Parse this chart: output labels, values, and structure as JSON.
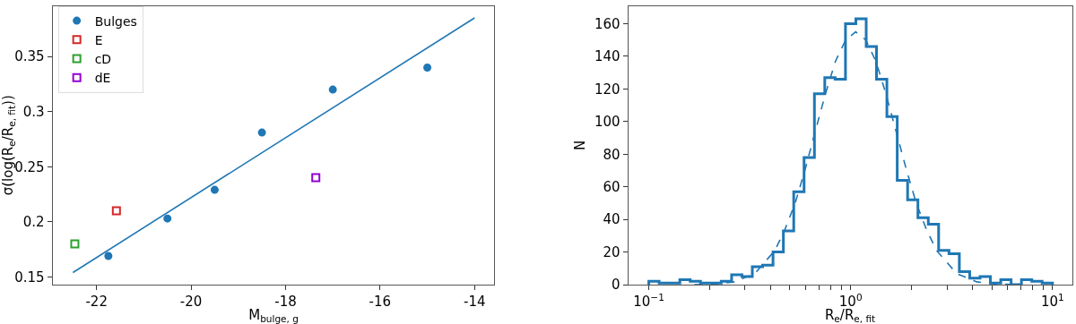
{
  "chart_data": [
    {
      "type": "scatter",
      "xlabel": "M$_{bulge, g}$",
      "ylabel": "σ(log(R$_{e}$/R$_{e, fit}$))",
      "xlim": [
        -22.93,
        -13.58
      ],
      "xticks": [
        -22,
        -20,
        -18,
        -16,
        -14
      ],
      "ylim": [
        0.143,
        0.396
      ],
      "yticks": [
        0.15,
        0.2,
        0.25,
        0.3,
        0.35
      ],
      "legend": "top left",
      "series": [
        {
          "name": "Bulges",
          "marker": "circle",
          "color": "#1f77b4",
          "x": [
            -21.75,
            -20.5,
            -19.5,
            -18.5,
            -17.0,
            -15.0
          ],
          "values": [
            0.169,
            0.203,
            0.229,
            0.281,
            0.32,
            0.34
          ]
        },
        {
          "name": "E",
          "marker": "square",
          "color": "#d62728",
          "x": [
            -21.58
          ],
          "values": [
            0.21
          ]
        },
        {
          "name": "cD",
          "marker": "square",
          "color": "#2ca02c",
          "x": [
            -22.46
          ],
          "values": [
            0.18
          ]
        },
        {
          "name": "dE",
          "marker": "square",
          "color": "#9400d3",
          "x": [
            -17.36
          ],
          "values": [
            0.24
          ]
        },
        {
          "type": "line",
          "color": "#1f77b4",
          "line_style": "solid",
          "x": [
            -22.5,
            -14.0
          ],
          "values": [
            0.154,
            0.385
          ]
        }
      ]
    },
    {
      "type": "histogram",
      "xlabel": "R$_{e}$/R$_{e, fit}$",
      "ylabel": "N",
      "log": "x",
      "xlim": [
        0.079,
        12.5
      ],
      "xticks": [
        {
          "value": 0.1,
          "label": "10$^{−1}$"
        },
        {
          "value": 0.2,
          "label": null
        },
        {
          "value": 0.3,
          "label": null
        },
        {
          "value": 0.4,
          "label": null
        },
        {
          "value": 0.5,
          "label": null
        },
        {
          "value": 0.6,
          "label": null
        },
        {
          "value": 0.7,
          "label": null
        },
        {
          "value": 0.8,
          "label": null
        },
        {
          "value": 0.9,
          "label": null
        },
        {
          "value": 1,
          "label": "10$^{0}$"
        },
        {
          "value": 2,
          "label": null
        },
        {
          "value": 3,
          "label": null
        },
        {
          "value": 4,
          "label": null
        },
        {
          "value": 5,
          "label": null
        },
        {
          "value": 6,
          "label": null
        },
        {
          "value": 7,
          "label": null
        },
        {
          "value": 8,
          "label": null
        },
        {
          "value": 9,
          "label": null
        },
        {
          "value": 10,
          "label": "10$^{1}$"
        }
      ],
      "ylim": [
        0,
        171
      ],
      "yticks": [
        0,
        20,
        40,
        60,
        80,
        100,
        120,
        140,
        160
      ],
      "legend": false,
      "series": [
        {
          "color": "#1f77b4",
          "bins": [
            0.1,
            0.1125,
            0.1266,
            0.1425,
            0.1603,
            0.1804,
            0.2031,
            0.2285,
            0.2572,
            0.2894,
            0.3257,
            0.3665,
            0.4125,
            0.4642,
            0.5224,
            0.5878,
            0.6615,
            0.7444,
            0.8377,
            0.9427,
            1.061,
            1.194,
            1.343,
            1.512,
            1.701,
            1.915,
            2.154,
            2.425,
            2.728,
            3.07,
            3.455,
            3.888,
            4.376,
            4.924,
            5.541,
            6.236,
            7.017,
            7.897,
            8.886,
            10
          ],
          "values": [
            2,
            1,
            1,
            3,
            2,
            1,
            1,
            2,
            6,
            5,
            11,
            12,
            20,
            33,
            57,
            78,
            117,
            127,
            126,
            160,
            163,
            146,
            126,
            103,
            64,
            52,
            41,
            37,
            21,
            19,
            8,
            4,
            5,
            1,
            3,
            0,
            3,
            2,
            1
          ]
        },
        {
          "type": "line",
          "color": "#2077b4",
          "line_style": "dashed",
          "x": [
            0.168,
            0.211,
            0.266,
            0.335,
            0.422,
            0.473,
            0.531,
            0.596,
            0.668,
            0.75,
            0.841,
            0.944,
            1.059,
            1.189,
            1.334,
            1.496,
            1.679,
            1.884,
            2.113,
            2.371,
            2.661,
            3.35,
            4.217,
            5.309,
            6.683
          ],
          "values": [
            0,
            0.3,
            1.7,
            6.8,
            21,
            34,
            50,
            71,
            94,
            117,
            137,
            150,
            155,
            150,
            137,
            117,
            94,
            71,
            50,
            34,
            21,
            6.8,
            1.7,
            0.3,
            0
          ]
        }
      ]
    }
  ]
}
